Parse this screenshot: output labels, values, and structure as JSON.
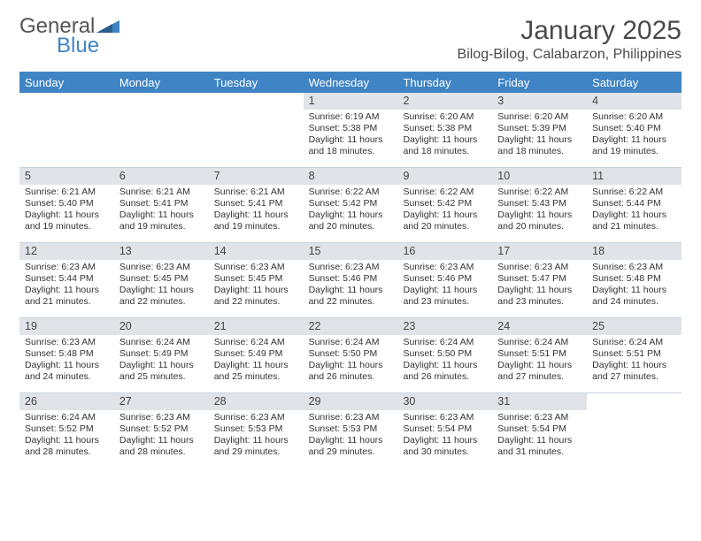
{
  "brand": {
    "line1": "General",
    "line2": "Blue",
    "logo_color": "#3f84c4",
    "text_color": "#555555"
  },
  "title": {
    "month": "January 2025",
    "location": "Bilog-Bilog, Calabarzon, Philippines",
    "title_fontsize": 30,
    "location_fontsize": 16,
    "color": "#4a4a4a"
  },
  "colors": {
    "header_bg": "#3f84c4",
    "header_text": "#ffffff",
    "datebar_bg": "#e0e4e8",
    "grid_line": "#c7d3dd",
    "body_text": "#333333",
    "background": "#ffffff"
  },
  "typography": {
    "base_font": "Arial, Helvetica, sans-serif",
    "header_fontsize": 13,
    "date_fontsize": 12.5,
    "body_fontsize": 10.5
  },
  "days_of_week": [
    "Sunday",
    "Monday",
    "Tuesday",
    "Wednesday",
    "Thursday",
    "Friday",
    "Saturday"
  ],
  "grid": {
    "columns": 7,
    "rows": 5,
    "start_weekday_index": 3,
    "days_in_month": 31
  },
  "days": {
    "1": {
      "sunrise": "6:19 AM",
      "sunset": "5:38 PM",
      "daylight": "11 hours and 18 minutes."
    },
    "2": {
      "sunrise": "6:20 AM",
      "sunset": "5:38 PM",
      "daylight": "11 hours and 18 minutes."
    },
    "3": {
      "sunrise": "6:20 AM",
      "sunset": "5:39 PM",
      "daylight": "11 hours and 18 minutes."
    },
    "4": {
      "sunrise": "6:20 AM",
      "sunset": "5:40 PM",
      "daylight": "11 hours and 19 minutes."
    },
    "5": {
      "sunrise": "6:21 AM",
      "sunset": "5:40 PM",
      "daylight": "11 hours and 19 minutes."
    },
    "6": {
      "sunrise": "6:21 AM",
      "sunset": "5:41 PM",
      "daylight": "11 hours and 19 minutes."
    },
    "7": {
      "sunrise": "6:21 AM",
      "sunset": "5:41 PM",
      "daylight": "11 hours and 19 minutes."
    },
    "8": {
      "sunrise": "6:22 AM",
      "sunset": "5:42 PM",
      "daylight": "11 hours and 20 minutes."
    },
    "9": {
      "sunrise": "6:22 AM",
      "sunset": "5:42 PM",
      "daylight": "11 hours and 20 minutes."
    },
    "10": {
      "sunrise": "6:22 AM",
      "sunset": "5:43 PM",
      "daylight": "11 hours and 20 minutes."
    },
    "11": {
      "sunrise": "6:22 AM",
      "sunset": "5:44 PM",
      "daylight": "11 hours and 21 minutes."
    },
    "12": {
      "sunrise": "6:23 AM",
      "sunset": "5:44 PM",
      "daylight": "11 hours and 21 minutes."
    },
    "13": {
      "sunrise": "6:23 AM",
      "sunset": "5:45 PM",
      "daylight": "11 hours and 22 minutes."
    },
    "14": {
      "sunrise": "6:23 AM",
      "sunset": "5:45 PM",
      "daylight": "11 hours and 22 minutes."
    },
    "15": {
      "sunrise": "6:23 AM",
      "sunset": "5:46 PM",
      "daylight": "11 hours and 22 minutes."
    },
    "16": {
      "sunrise": "6:23 AM",
      "sunset": "5:46 PM",
      "daylight": "11 hours and 23 minutes."
    },
    "17": {
      "sunrise": "6:23 AM",
      "sunset": "5:47 PM",
      "daylight": "11 hours and 23 minutes."
    },
    "18": {
      "sunrise": "6:23 AM",
      "sunset": "5:48 PM",
      "daylight": "11 hours and 24 minutes."
    },
    "19": {
      "sunrise": "6:23 AM",
      "sunset": "5:48 PM",
      "daylight": "11 hours and 24 minutes."
    },
    "20": {
      "sunrise": "6:24 AM",
      "sunset": "5:49 PM",
      "daylight": "11 hours and 25 minutes."
    },
    "21": {
      "sunrise": "6:24 AM",
      "sunset": "5:49 PM",
      "daylight": "11 hours and 25 minutes."
    },
    "22": {
      "sunrise": "6:24 AM",
      "sunset": "5:50 PM",
      "daylight": "11 hours and 26 minutes."
    },
    "23": {
      "sunrise": "6:24 AM",
      "sunset": "5:50 PM",
      "daylight": "11 hours and 26 minutes."
    },
    "24": {
      "sunrise": "6:24 AM",
      "sunset": "5:51 PM",
      "daylight": "11 hours and 27 minutes."
    },
    "25": {
      "sunrise": "6:24 AM",
      "sunset": "5:51 PM",
      "daylight": "11 hours and 27 minutes."
    },
    "26": {
      "sunrise": "6:24 AM",
      "sunset": "5:52 PM",
      "daylight": "11 hours and 28 minutes."
    },
    "27": {
      "sunrise": "6:23 AM",
      "sunset": "5:52 PM",
      "daylight": "11 hours and 28 minutes."
    },
    "28": {
      "sunrise": "6:23 AM",
      "sunset": "5:53 PM",
      "daylight": "11 hours and 29 minutes."
    },
    "29": {
      "sunrise": "6:23 AM",
      "sunset": "5:53 PM",
      "daylight": "11 hours and 29 minutes."
    },
    "30": {
      "sunrise": "6:23 AM",
      "sunset": "5:54 PM",
      "daylight": "11 hours and 30 minutes."
    },
    "31": {
      "sunrise": "6:23 AM",
      "sunset": "5:54 PM",
      "daylight": "11 hours and 31 minutes."
    }
  },
  "labels": {
    "sunrise_prefix": "Sunrise: ",
    "sunset_prefix": "Sunset: ",
    "daylight_prefix": "Daylight: "
  }
}
